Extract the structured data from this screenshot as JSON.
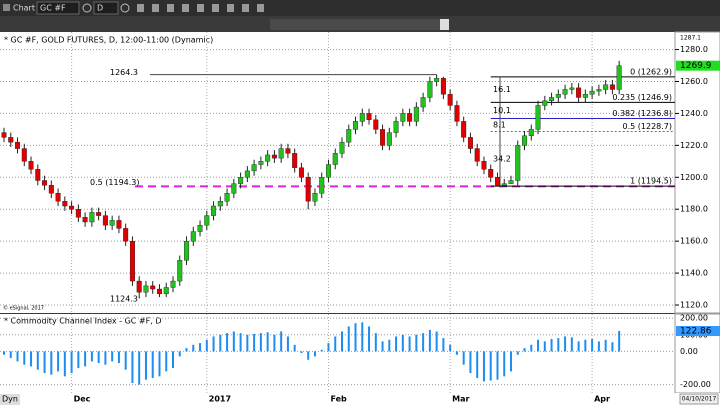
{
  "toolbar": {
    "title": "Chart",
    "symbol": "GC #F",
    "interval": "D"
  },
  "footer": {
    "mode": "Dyn",
    "date": "04/10/2017"
  },
  "chart_data": [
    {
      "type": "candlestick",
      "title": "* GC #F, GOLD FUTURES, D, 12:00-11:00 (Dynamic)",
      "watermark": "© eSignal, 2017",
      "categories": [
        null,
        null,
        null,
        null,
        null,
        null,
        null,
        null,
        null,
        null,
        "Dec",
        null,
        null,
        null,
        null,
        null,
        null,
        null,
        null,
        null,
        null,
        null,
        null,
        null,
        null,
        null,
        null,
        null,
        null,
        null,
        "2017",
        null,
        null,
        null,
        null,
        null,
        null,
        null,
        null,
        null,
        null,
        null,
        null,
        null,
        null,
        null,
        null,
        null,
        "Feb",
        null,
        null,
        null,
        null,
        null,
        null,
        null,
        null,
        null,
        null,
        null,
        null,
        null,
        null,
        null,
        null,
        null,
        "Mar",
        null,
        null,
        null,
        null,
        null,
        null,
        null,
        null,
        null,
        null,
        null,
        null,
        null,
        null,
        null,
        null,
        null,
        null,
        null,
        null,
        "Apr",
        null,
        null,
        null,
        null
      ],
      "open": [
        1228,
        1225,
        1222,
        1218,
        1210,
        1205,
        1198,
        1195,
        1190,
        1185,
        1182,
        1180,
        1175,
        1172,
        1178,
        1176,
        1170,
        1173,
        1168,
        1160,
        1135,
        1128,
        1132,
        1130,
        1127,
        1131,
        1135,
        1148,
        1160,
        1166,
        1170,
        1176,
        1182,
        1185,
        1190,
        1196,
        1200,
        1204,
        1208,
        1210,
        1214,
        1212,
        1218,
        1215,
        1206,
        1200,
        1185,
        1190,
        1200,
        1208,
        1215,
        1222,
        1230,
        1235,
        1240,
        1236,
        1230,
        1220,
        1228,
        1235,
        1240,
        1235,
        1244,
        1250,
        1260,
        1262,
        1252,
        1245,
        1235,
        1225,
        1218,
        1210,
        1205,
        1200,
        1195,
        1196,
        1198,
        1220,
        1226,
        1230,
        1245,
        1248,
        1250,
        1252,
        1255,
        1256,
        1250,
        1252,
        1254,
        1255,
        1258,
        1255
      ],
      "high": [
        1231,
        1228,
        1225,
        1221,
        1213,
        1208,
        1201,
        1198,
        1193,
        1188,
        1185,
        1183,
        1178,
        1181,
        1181,
        1179,
        1176,
        1176,
        1171,
        1163,
        1138,
        1135,
        1135,
        1133,
        1134,
        1138,
        1151,
        1163,
        1169,
        1173,
        1179,
        1185,
        1188,
        1193,
        1199,
        1203,
        1207,
        1211,
        1213,
        1217,
        1217,
        1221,
        1221,
        1218,
        1209,
        1203,
        1193,
        1203,
        1211,
        1218,
        1225,
        1233,
        1238,
        1243,
        1243,
        1239,
        1233,
        1231,
        1238,
        1243,
        1243,
        1247,
        1253,
        1263,
        1264.3,
        1263,
        1255,
        1248,
        1238,
        1228,
        1221,
        1213,
        1208,
        1203,
        1199,
        1201,
        1223,
        1229,
        1233,
        1248,
        1251,
        1253,
        1255,
        1258,
        1259,
        1259,
        1255,
        1257,
        1258,
        1261,
        1261,
        1273
      ],
      "low": [
        1222,
        1219,
        1215,
        1207,
        1202,
        1195,
        1192,
        1187,
        1182,
        1179,
        1177,
        1172,
        1169,
        1169,
        1173,
        1167,
        1167,
        1165,
        1157,
        1132,
        1124.3,
        1125,
        1127,
        1125,
        1125,
        1128,
        1132,
        1145,
        1157,
        1163,
        1167,
        1173,
        1179,
        1182,
        1187,
        1193,
        1197,
        1201,
        1205,
        1207,
        1209,
        1209,
        1212,
        1203,
        1197,
        1180,
        1182,
        1187,
        1197,
        1205,
        1212,
        1219,
        1227,
        1232,
        1233,
        1227,
        1217,
        1217,
        1225,
        1232,
        1232,
        1232,
        1241,
        1247,
        1257,
        1249,
        1242,
        1232,
        1222,
        1215,
        1207,
        1202,
        1197,
        1194.5,
        1195,
        1196,
        1195,
        1217,
        1223,
        1227,
        1242,
        1245,
        1247,
        1249,
        1252,
        1247,
        1247,
        1249,
        1251,
        1252,
        1252,
        1252
      ],
      "close": [
        1225,
        1222,
        1218,
        1210,
        1205,
        1198,
        1195,
        1190,
        1185,
        1182,
        1180,
        1175,
        1172,
        1178,
        1176,
        1170,
        1173,
        1168,
        1160,
        1135,
        1128,
        1132,
        1130,
        1127,
        1131,
        1135,
        1148,
        1160,
        1166,
        1170,
        1176,
        1182,
        1185,
        1190,
        1196,
        1200,
        1204,
        1208,
        1210,
        1214,
        1212,
        1218,
        1215,
        1206,
        1200,
        1185,
        1190,
        1200,
        1208,
        1215,
        1222,
        1230,
        1235,
        1240,
        1236,
        1230,
        1220,
        1228,
        1235,
        1240,
        1235,
        1244,
        1250,
        1260,
        1262,
        1252,
        1245,
        1235,
        1225,
        1218,
        1210,
        1205,
        1200,
        1195,
        1196,
        1198,
        1220,
        1226,
        1230,
        1245,
        1248,
        1250,
        1252,
        1255,
        1256,
        1250,
        1252,
        1254,
        1255,
        1258,
        1255,
        1269.9
      ],
      "up_color": "#22c21e",
      "down_color": "#e00000",
      "ylim": [
        1115,
        1291
      ],
      "yticks": [
        {
          "value": 1120,
          "label": "1120.0"
        },
        {
          "value": 1140,
          "label": "1140.0"
        },
        {
          "value": 1160,
          "label": "1160.0"
        },
        {
          "value": 1180,
          "label": "1180.0"
        },
        {
          "value": 1200,
          "label": "1200.0"
        },
        {
          "value": 1220,
          "label": "1220.0"
        },
        {
          "value": 1240,
          "label": "1240.0"
        },
        {
          "value": 1260,
          "label": "1260.0"
        },
        {
          "value": 1280,
          "label": "1280.0"
        }
      ],
      "grid": true,
      "axis_max": 1287.1,
      "last": 1269.9,
      "last_color": "#22dd22",
      "high_label": 1264.3,
      "low_label": 1124.3,
      "mid_level": {
        "label": "0.5 (1194.3)",
        "value": 1194.3,
        "color": "#dd22dd"
      },
      "levels": [
        {
          "label": "0 (1262.9)",
          "value": 1262.9,
          "color": "#000000"
        },
        {
          "label": "0.235 (1246.9)",
          "value": 1246.9,
          "color": "#000000"
        },
        {
          "label": "0.382 (1236.8)",
          "value": 1236.8,
          "color": "#2222cc"
        },
        {
          "label": "0.5 (1228.7)",
          "value": 1228.7,
          "color": "#dd22dd"
        },
        {
          "label": "1 (1194.5)",
          "value": 1194.5,
          "color": "#000000"
        }
      ],
      "measures": [
        16.1,
        10.1,
        8.1,
        34.2
      ]
    },
    {
      "type": "histogram",
      "title": "* Commodity Channel Index - GC #F, D",
      "color": "#1e8cf0",
      "values": [
        -20,
        -40,
        -60,
        -80,
        -90,
        -110,
        -130,
        -140,
        -120,
        -150,
        -130,
        -100,
        -90,
        -60,
        -70,
        -80,
        -60,
        -70,
        -110,
        -190,
        -200,
        -170,
        -160,
        -150,
        -120,
        -100,
        -30,
        20,
        40,
        50,
        70,
        90,
        100,
        110,
        120,
        110,
        100,
        105,
        110,
        115,
        100,
        120,
        90,
        40,
        -10,
        -50,
        -30,
        10,
        50,
        90,
        120,
        150,
        170,
        175,
        150,
        110,
        60,
        70,
        90,
        100,
        90,
        100,
        110,
        130,
        120,
        80,
        40,
        -20,
        -80,
        -130,
        -160,
        -180,
        -175,
        -170,
        -150,
        -120,
        -20,
        20,
        40,
        70,
        60,
        75,
        80,
        90,
        85,
        60,
        70,
        75,
        60,
        70,
        55,
        122.86
      ],
      "ylim": [
        -250,
        225
      ],
      "yticks": [
        {
          "value": -200,
          "label": "-200.00"
        },
        {
          "value": 0,
          "label": "0.00"
        },
        {
          "value": 100,
          "label": "100.00"
        },
        {
          "value": 200,
          "label": "200.00"
        }
      ],
      "last": 122.86,
      "last_color": "#3399ff"
    }
  ]
}
